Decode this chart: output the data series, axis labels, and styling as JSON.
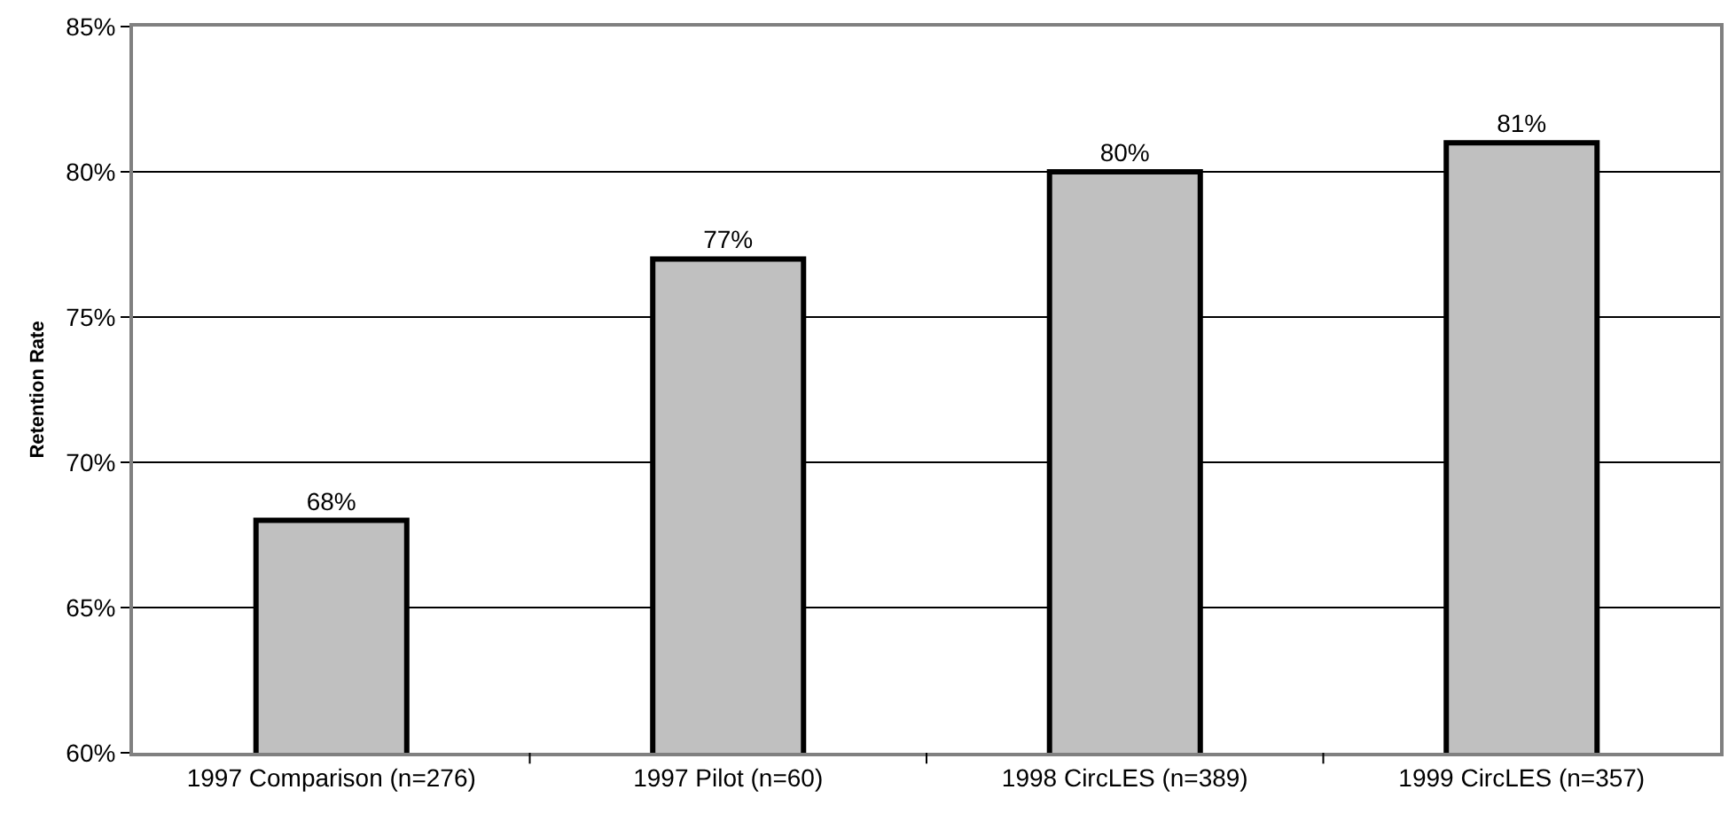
{
  "chart_data": {
    "type": "bar",
    "ylabel": "Retention Rate",
    "categories": [
      "1997 Comparison (n=276)",
      "1997 Pilot (n=60)",
      "1998 CircLES (n=389)",
      "1999 CircLES (n=357)"
    ],
    "values": [
      68,
      77,
      80,
      81
    ],
    "value_labels": [
      "68%",
      "77%",
      "80%",
      "81%"
    ],
    "color": "#c0c0c0",
    "ylim": [
      60,
      85
    ],
    "yticks": [
      {
        "value": 60,
        "label": "60%"
      },
      {
        "value": 65,
        "label": "65%"
      },
      {
        "value": 70,
        "label": "70%"
      },
      {
        "value": 75,
        "label": "75%"
      },
      {
        "value": 80,
        "label": "80%"
      },
      {
        "value": 85,
        "label": "85%"
      }
    ],
    "grid": "y"
  }
}
